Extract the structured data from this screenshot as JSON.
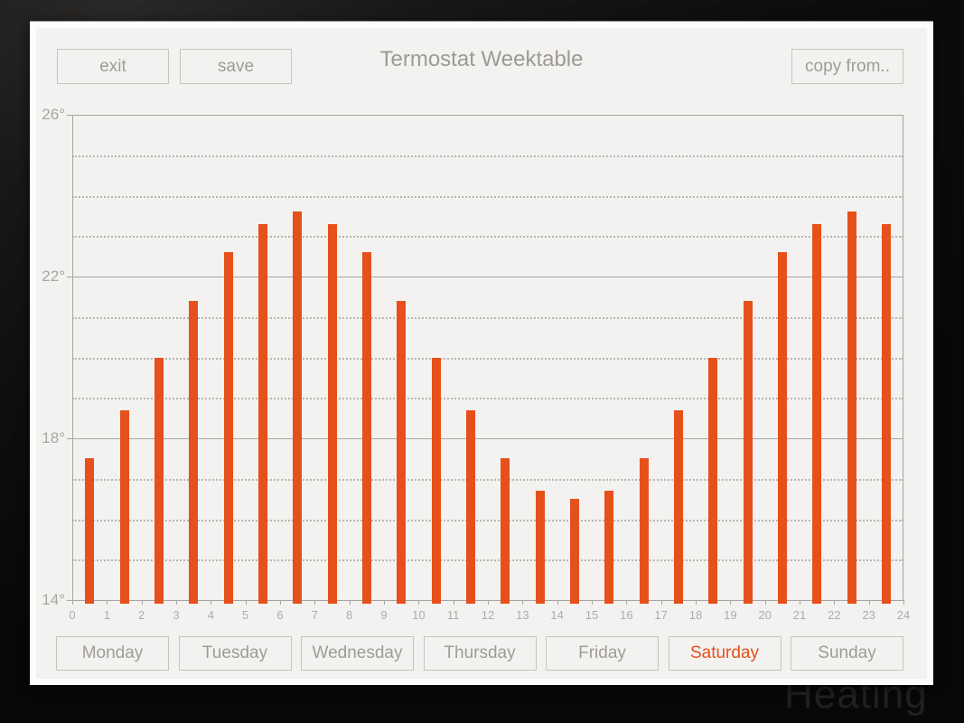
{
  "app": {
    "title": "Termostat Weektable"
  },
  "toolbar": {
    "exit_label": "exit",
    "save_label": "save",
    "copy_from_label": "copy from.."
  },
  "day_tabs": [
    {
      "label": "Monday",
      "active": false
    },
    {
      "label": "Tuesday",
      "active": false
    },
    {
      "label": "Wednesday",
      "active": false
    },
    {
      "label": "Thursday",
      "active": false
    },
    {
      "label": "Friday",
      "active": false
    },
    {
      "label": "Saturday",
      "active": true
    },
    {
      "label": "Sunday",
      "active": false
    }
  ],
  "background": {
    "watermark_text": "Heating"
  },
  "chart_data": {
    "type": "bar",
    "title": "Termostat Weektable",
    "categories": [
      0,
      1,
      2,
      3,
      4,
      5,
      6,
      7,
      8,
      9,
      10,
      11,
      12,
      13,
      14,
      15,
      16,
      17,
      18,
      19,
      20,
      21,
      22,
      23
    ],
    "values": [
      17.5,
      18.7,
      20.0,
      21.4,
      22.6,
      23.3,
      23.6,
      23.3,
      22.6,
      21.4,
      20.0,
      18.7,
      17.5,
      16.7,
      16.5,
      16.7,
      17.5,
      18.7,
      20.0,
      21.4,
      22.6,
      23.3,
      23.6,
      23.3
    ],
    "xlabel": "",
    "ylabel": "",
    "xlim": [
      0,
      24
    ],
    "ylim": [
      14,
      26
    ],
    "x_tick_labels": [
      "0",
      "1",
      "2",
      "3",
      "4",
      "5",
      "6",
      "7",
      "8",
      "9",
      "10",
      "11",
      "12",
      "13",
      "14",
      "15",
      "16",
      "17",
      "18",
      "19",
      "20",
      "21",
      "22",
      "23",
      "24"
    ],
    "y_tick_labels": [
      "26°",
      "22°",
      "18°",
      "14°"
    ],
    "y_solid_lines": [
      26,
      22,
      18,
      14
    ],
    "grid": "horizontal dashed line at every 1 degree, solid at every 4 degrees",
    "legend": "none",
    "bar_color": "#e6501b"
  },
  "colors": {
    "accent": "#e6501b",
    "panel_bg": "#f3f2f0",
    "button_border": "#c6c4c1",
    "button_text": "#9e9c99",
    "grid_solid": "#a7a5a2",
    "grid_dashed": "#b8b6b3",
    "axis_label": "#a8a6a3"
  }
}
